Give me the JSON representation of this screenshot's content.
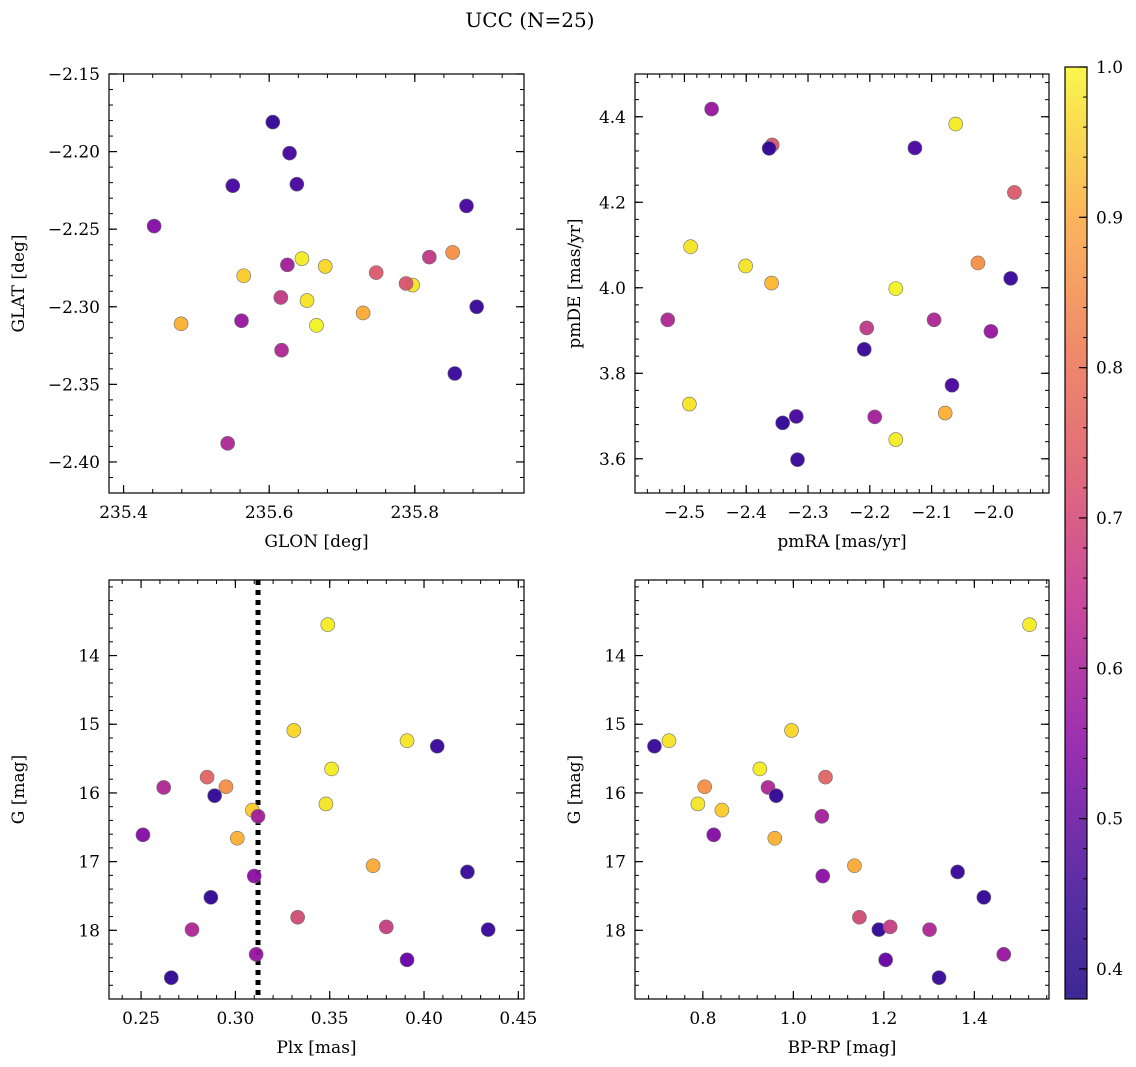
{
  "figure": {
    "title": "UCC (N=25)",
    "colorbar": {
      "min": 0.38,
      "max": 1.0,
      "ticks": [
        "0.4",
        "0.5",
        "0.6",
        "0.7",
        "0.8",
        "0.9",
        "1.0"
      ]
    }
  },
  "chart_data": [
    {
      "type": "scatter",
      "id": "glon-glat",
      "xlabel": "GLON [deg]",
      "ylabel": "GLAT [deg]",
      "xlim": [
        235.38,
        235.95
      ],
      "ylim": [
        -2.42,
        -2.15
      ],
      "y_inverted": false,
      "xticks": [
        "235.4",
        "235.6",
        "235.8"
      ],
      "yticks": [
        "−2.40",
        "−2.35",
        "−2.30",
        "−2.25",
        "−2.20",
        "−2.15"
      ],
      "x": [
        235.605,
        235.628,
        235.55,
        235.638,
        235.871,
        235.442,
        235.645,
        235.677,
        235.565,
        235.625,
        235.747,
        235.82,
        235.852,
        235.797,
        235.788,
        235.616,
        235.652,
        235.885,
        235.479,
        235.729,
        235.665,
        235.562,
        235.617,
        235.855,
        235.543
      ],
      "y": [
        -2.181,
        -2.201,
        -2.222,
        -2.221,
        -2.235,
        -2.248,
        -2.269,
        -2.274,
        -2.28,
        -2.273,
        -2.278,
        -2.268,
        -2.265,
        -2.286,
        -2.285,
        -2.294,
        -2.296,
        -2.3,
        -2.311,
        -2.304,
        -2.312,
        -2.309,
        -2.328,
        -2.343,
        -2.388
      ],
      "color_values": [
        0.42,
        0.45,
        0.45,
        0.45,
        0.45,
        0.55,
        0.98,
        0.95,
        0.93,
        0.6,
        0.73,
        0.66,
        0.83,
        0.97,
        0.72,
        0.66,
        0.97,
        0.43,
        0.89,
        0.88,
        0.99,
        0.58,
        0.62,
        0.43,
        0.62
      ]
    },
    {
      "type": "scatter",
      "id": "pmra-pmde",
      "xlabel": "pmRA [mas/yr]",
      "ylabel": "pmDE [mas/yr]",
      "xlim": [
        -2.58,
        -1.91
      ],
      "ylim": [
        3.52,
        4.5
      ],
      "y_inverted": false,
      "xticks": [
        "−2.5",
        "−2.4",
        "−2.3",
        "−2.2",
        "−2.1",
        "−2.0"
      ],
      "yticks": [
        "3.6",
        "3.8",
        "4.0",
        "4.2",
        "4.4"
      ],
      "x": [
        -2.456,
        -2.358,
        -2.363,
        -2.127,
        -2.061,
        -1.966,
        -2.49,
        -2.401,
        -2.359,
        -2.025,
        -1.972,
        -2.158,
        -2.527,
        -2.096,
        -2.205,
        -2.004,
        -2.209,
        -2.067,
        -2.492,
        -2.078,
        -2.158,
        -2.341,
        -2.319,
        -2.192,
        -2.317
      ],
      "y": [
        4.418,
        4.334,
        4.326,
        4.327,
        4.383,
        4.223,
        4.096,
        4.051,
        4.011,
        4.058,
        4.022,
        3.998,
        3.925,
        3.925,
        3.906,
        3.898,
        3.856,
        3.772,
        3.728,
        3.707,
        3.645,
        3.684,
        3.699,
        3.698,
        3.598
      ],
      "color_values": [
        0.58,
        0.72,
        0.42,
        0.45,
        0.98,
        0.73,
        0.97,
        0.97,
        0.9,
        0.83,
        0.43,
        0.99,
        0.62,
        0.62,
        0.66,
        0.58,
        0.43,
        0.45,
        0.97,
        0.89,
        0.98,
        0.42,
        0.45,
        0.6,
        0.43
      ]
    },
    {
      "type": "scatter",
      "id": "plx-g",
      "xlabel": "Plx [mas]",
      "ylabel": "G [mag]",
      "xlim": [
        0.233,
        0.453
      ],
      "ylim": [
        12.9,
        19.0
      ],
      "y_inverted": true,
      "xticks": [
        "0.25",
        "0.30",
        "0.35",
        "0.40",
        "0.45"
      ],
      "yticks": [
        "14",
        "15",
        "16",
        "17",
        "18"
      ],
      "vline": 0.312,
      "x": [
        0.349,
        0.331,
        0.391,
        0.407,
        0.351,
        0.285,
        0.262,
        0.295,
        0.289,
        0.348,
        0.309,
        0.312,
        0.301,
        0.251,
        0.373,
        0.423,
        0.31,
        0.287,
        0.333,
        0.277,
        0.38,
        0.434,
        0.311,
        0.391,
        0.266
      ],
      "y": [
        13.55,
        15.09,
        15.24,
        15.32,
        15.65,
        15.77,
        15.92,
        15.91,
        16.04,
        16.16,
        16.25,
        16.34,
        16.66,
        16.61,
        17.06,
        17.15,
        17.21,
        17.52,
        17.81,
        17.99,
        17.95,
        17.99,
        18.35,
        18.43,
        18.69
      ],
      "color_values": [
        0.98,
        0.95,
        0.97,
        0.43,
        0.98,
        0.75,
        0.62,
        0.83,
        0.42,
        0.97,
        0.93,
        0.6,
        0.89,
        0.55,
        0.88,
        0.43,
        0.56,
        0.42,
        0.7,
        0.62,
        0.67,
        0.43,
        0.58,
        0.5,
        0.42
      ]
    },
    {
      "type": "scatter",
      "id": "bprp-g",
      "xlabel": "BP-RP [mag]",
      "ylabel": "G [mag]",
      "xlim": [
        0.65,
        1.565
      ],
      "ylim": [
        12.9,
        19.0
      ],
      "y_inverted": true,
      "xticks": [
        "0.8",
        "1.0",
        "1.2",
        "1.4"
      ],
      "yticks": [
        "14",
        "15",
        "16",
        "17",
        "18"
      ],
      "x": [
        1.522,
        0.693,
        0.725,
        0.996,
        0.926,
        1.071,
        0.804,
        0.944,
        0.962,
        0.789,
        0.842,
        1.063,
        0.824,
        0.959,
        1.135,
        1.363,
        1.065,
        1.421,
        1.146,
        1.189,
        1.214,
        1.301,
        1.465,
        1.204,
        1.322
      ],
      "y": [
        13.55,
        15.32,
        15.24,
        15.09,
        15.65,
        15.77,
        15.91,
        15.92,
        16.04,
        16.16,
        16.25,
        16.34,
        16.61,
        16.66,
        17.06,
        17.15,
        17.21,
        17.52,
        17.81,
        17.99,
        17.95,
        17.99,
        18.35,
        18.43,
        18.69
      ],
      "color_values": [
        0.98,
        0.43,
        0.97,
        0.95,
        0.98,
        0.75,
        0.83,
        0.62,
        0.42,
        0.97,
        0.93,
        0.6,
        0.55,
        0.89,
        0.88,
        0.43,
        0.56,
        0.42,
        0.7,
        0.42,
        0.67,
        0.62,
        0.58,
        0.5,
        0.43
      ]
    }
  ]
}
